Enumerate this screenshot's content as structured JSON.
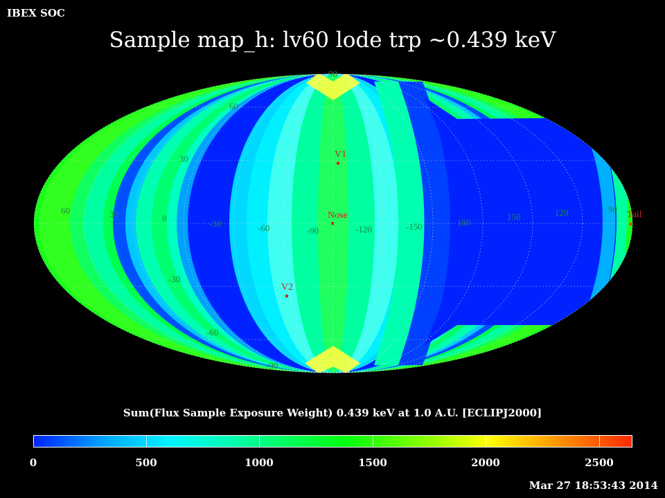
{
  "header": {
    "org_label": "IBEX SOC"
  },
  "title": "Sample map_h: lv60 lode trp ~0.439 keV",
  "map": {
    "projection": "mollweide",
    "colormap": "blue-cyan-green-yellow-red",
    "lat_labels": [
      "90",
      "60",
      "30",
      "-30",
      "-60",
      "-90"
    ],
    "lon_labels": [
      "60",
      "30",
      "0",
      "-30",
      "-60",
      "-90",
      "-120",
      "-150",
      "180",
      "150",
      "120",
      "90"
    ],
    "markers": [
      {
        "label": "V1",
        "lon": -93,
        "lat": 34
      },
      {
        "label": "Nose",
        "lon": -105,
        "lat": 5
      },
      {
        "label": "V2",
        "lon": -70,
        "lat": -33
      },
      {
        "label": "Tail",
        "lon": 75,
        "lat": -5
      }
    ]
  },
  "colorbar": {
    "title": "Sum(Flux Sample Exposure Weight)  0.439 keV at 1.0 A.U. [ECLIPJ2000]",
    "min": 0,
    "max": 2650,
    "ticks": [
      "0",
      "500",
      "1000",
      "1500",
      "2000",
      "2500"
    ]
  },
  "timestamp": "Mar 27 18:53:43 2014"
}
